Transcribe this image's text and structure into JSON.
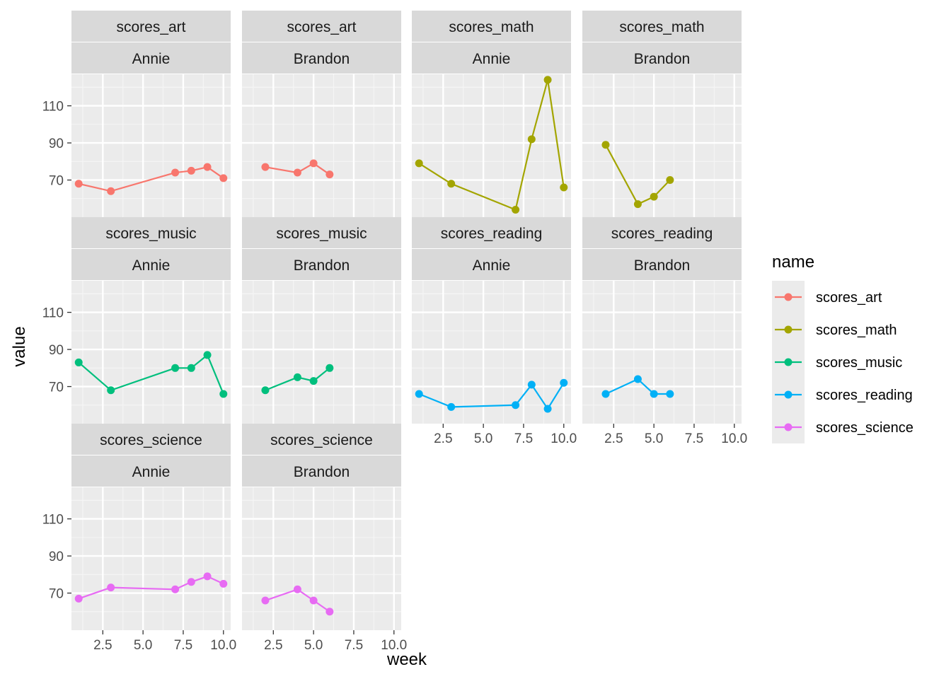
{
  "chart_data": {
    "type": "line",
    "facet_rows": [
      "scores_art",
      "scores_math",
      "scores_music",
      "scores_reading",
      "scores_science"
    ],
    "facet_cols": [
      "Annie",
      "Brandon"
    ],
    "xlabel": "week",
    "ylabel": "value",
    "x_ticks": [
      2.5,
      5.0,
      7.5,
      10.0
    ],
    "x_tick_labels": [
      "2.5",
      "5.0",
      "7.5",
      "10.0"
    ],
    "y_ticks": [
      70,
      90,
      110
    ],
    "y_tick_labels": [
      "70",
      "90",
      "110"
    ],
    "xlim": [
      0.55,
      10.45
    ],
    "ylim": [
      50,
      127
    ],
    "grid": true,
    "legend": {
      "title": "name",
      "position": "right",
      "entries": [
        "scores_art",
        "scores_math",
        "scores_music",
        "scores_reading",
        "scores_science"
      ]
    },
    "colors": {
      "scores_art": "#F8766D",
      "scores_math": "#A3A500",
      "scores_music": "#00BF7D",
      "scores_reading": "#00B0F6",
      "scores_science": "#E76BF3"
    },
    "panels": [
      {
        "name": "scores_art",
        "student": "Annie",
        "x": [
          1,
          3,
          7,
          8,
          9,
          10
        ],
        "y": [
          68,
          64,
          74,
          75,
          77,
          71
        ]
      },
      {
        "name": "scores_art",
        "student": "Brandon",
        "x": [
          2,
          4,
          5,
          6
        ],
        "y": [
          77,
          74,
          79,
          73
        ]
      },
      {
        "name": "scores_math",
        "student": "Annie",
        "x": [
          1,
          3,
          7,
          8,
          9,
          10
        ],
        "y": [
          79,
          68,
          54,
          92,
          124,
          66
        ]
      },
      {
        "name": "scores_math",
        "student": "Brandon",
        "x": [
          2,
          4,
          5,
          6
        ],
        "y": [
          89,
          57,
          61,
          70
        ]
      },
      {
        "name": "scores_music",
        "student": "Annie",
        "x": [
          1,
          3,
          7,
          8,
          9,
          10
        ],
        "y": [
          83,
          68,
          80,
          80,
          87,
          66
        ]
      },
      {
        "name": "scores_music",
        "student": "Brandon",
        "x": [
          2,
          4,
          5,
          6
        ],
        "y": [
          68,
          75,
          73,
          80
        ]
      },
      {
        "name": "scores_reading",
        "student": "Annie",
        "x": [
          1,
          3,
          7,
          8,
          9,
          10
        ],
        "y": [
          66,
          59,
          60,
          71,
          58,
          72
        ]
      },
      {
        "name": "scores_reading",
        "student": "Brandon",
        "x": [
          2,
          4,
          5,
          6
        ],
        "y": [
          66,
          74,
          66,
          66
        ]
      },
      {
        "name": "scores_science",
        "student": "Annie",
        "x": [
          1,
          3,
          7,
          8,
          9,
          10
        ],
        "y": [
          67,
          73,
          72,
          76,
          79,
          75
        ]
      },
      {
        "name": "scores_science",
        "student": "Brandon",
        "x": [
          2,
          4,
          5,
          6
        ],
        "y": [
          66,
          72,
          66,
          60
        ]
      }
    ]
  }
}
